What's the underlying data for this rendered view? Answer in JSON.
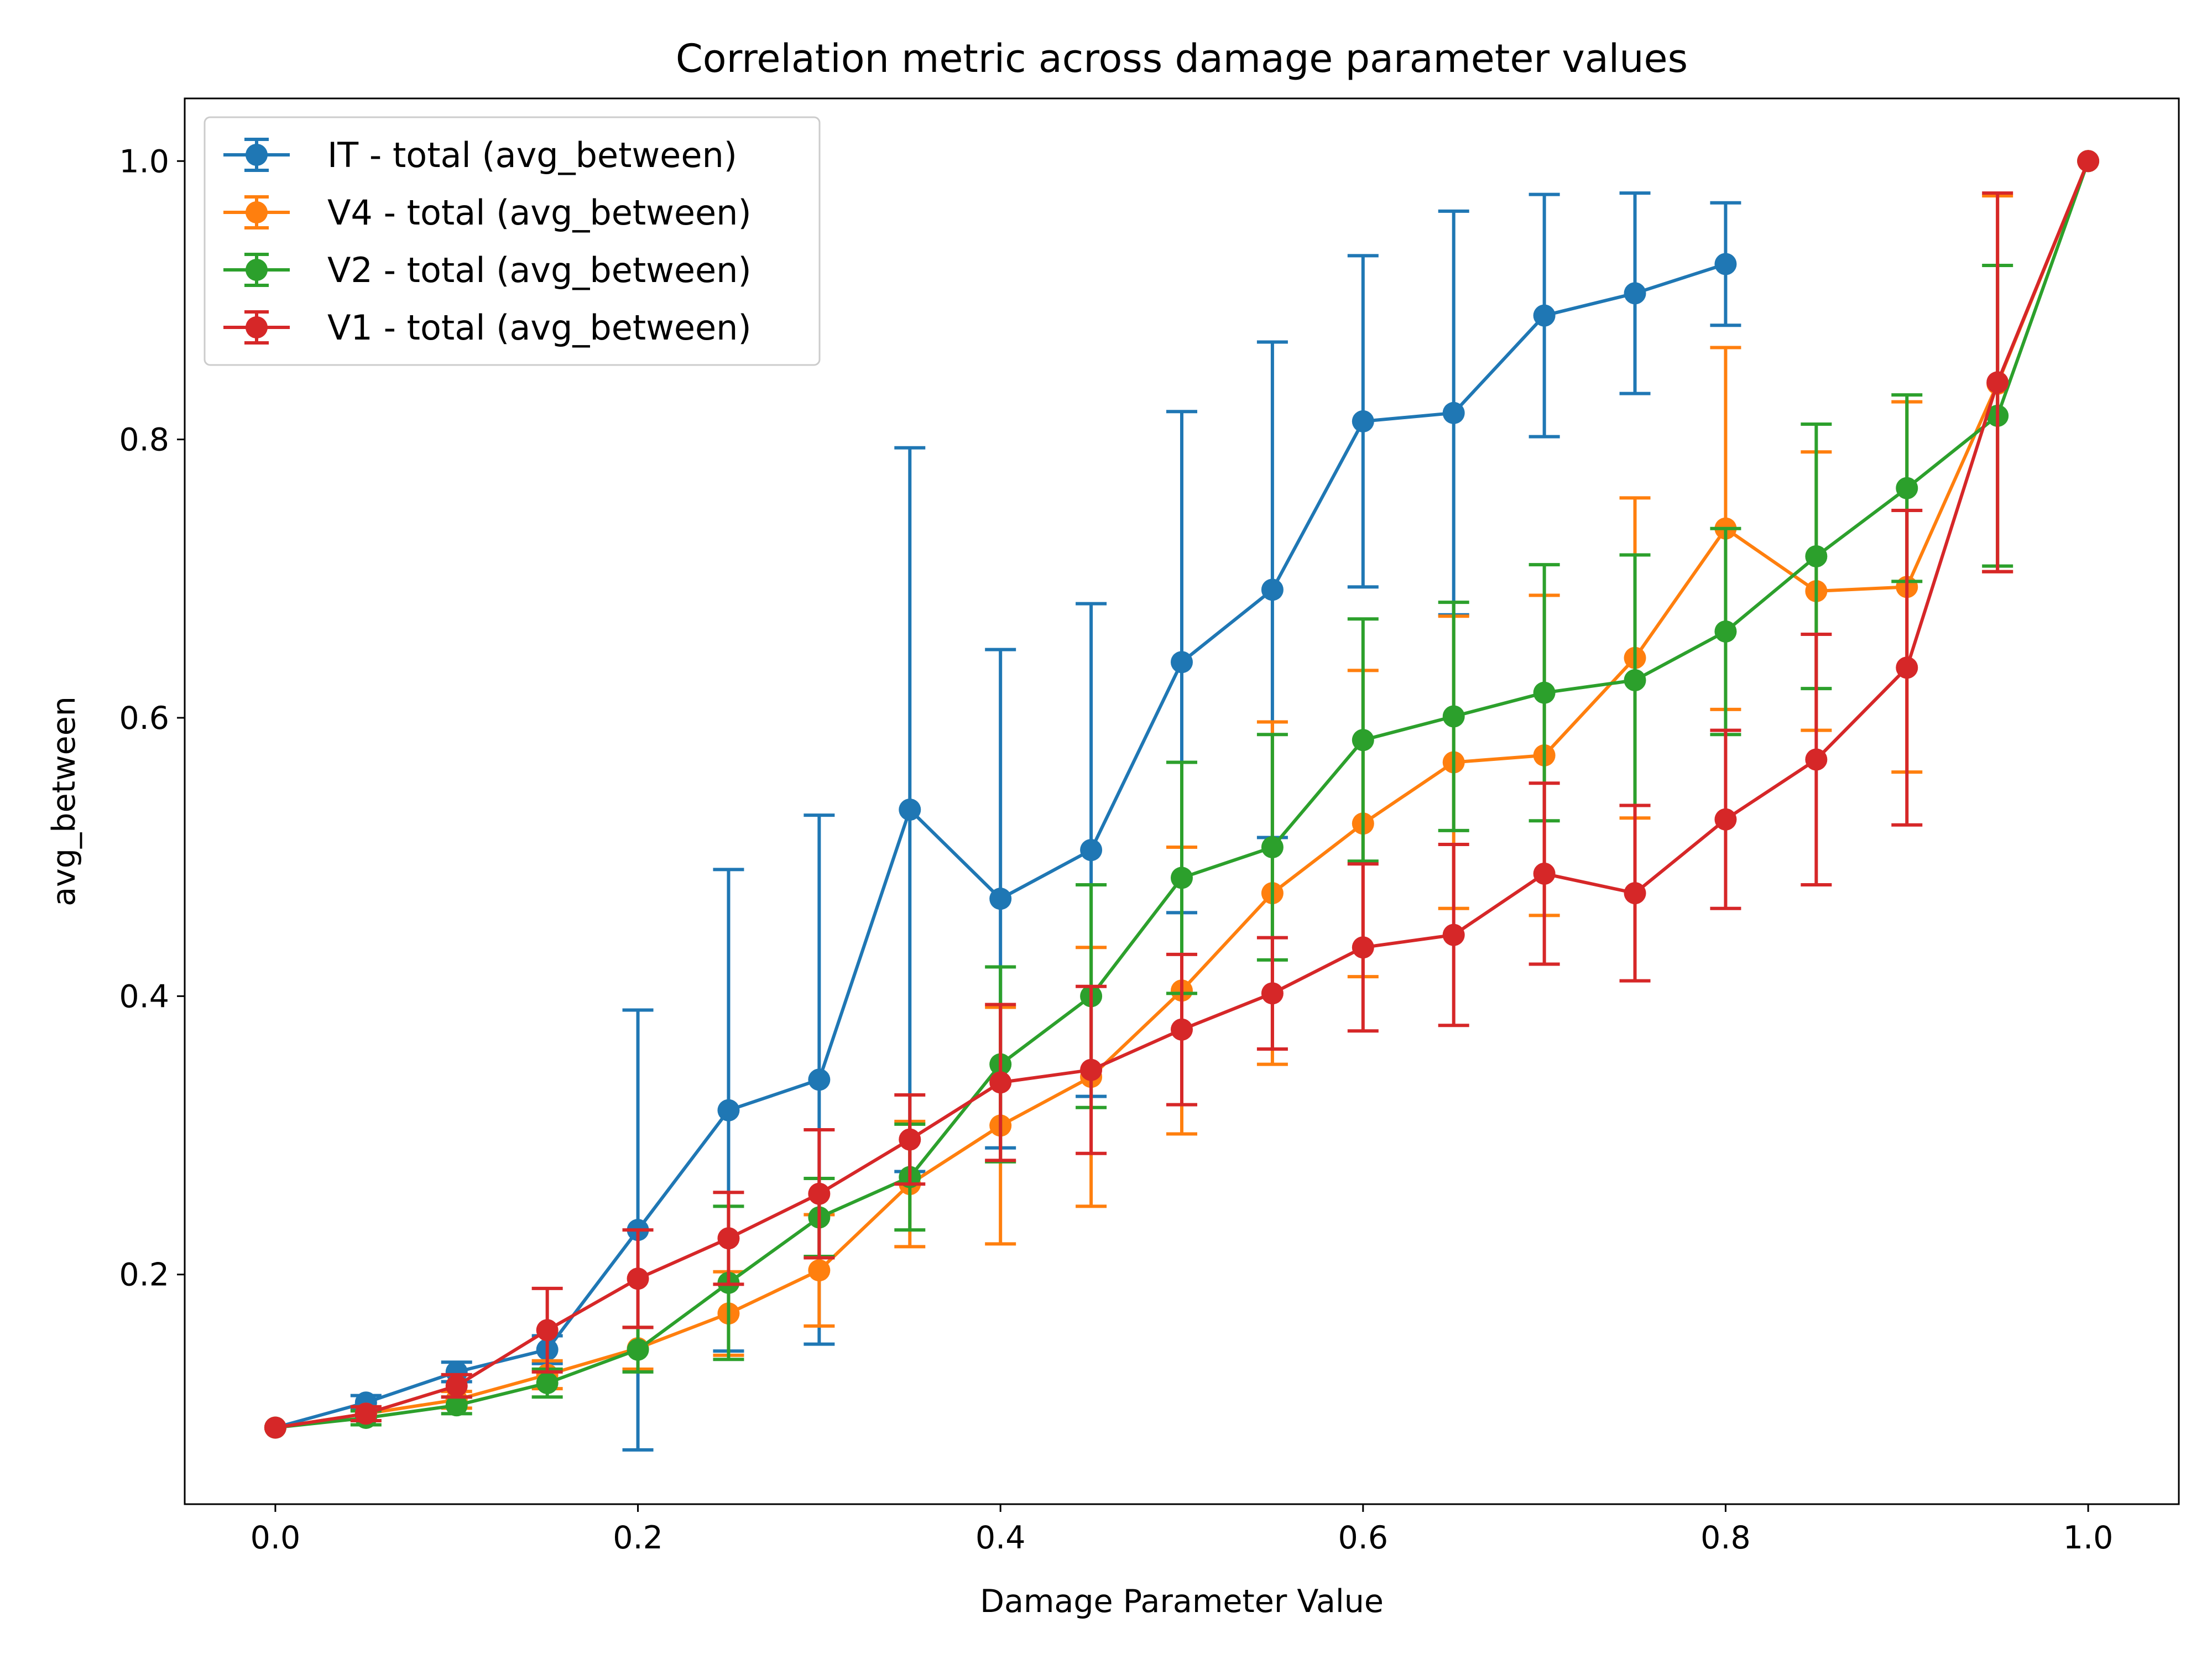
{
  "chart_data": {
    "type": "line",
    "title": "Correlation metric across damage parameter values",
    "xlabel": "Damage Parameter Value",
    "ylabel": "avg_between",
    "xlim": [
      -0.05,
      1.05
    ],
    "ylim": [
      0.035,
      1.045
    ],
    "x_ticks": [
      0.0,
      0.2,
      0.4,
      0.6,
      0.8,
      1.0
    ],
    "x_tick_labels": [
      "0.0",
      "0.2",
      "0.4",
      "0.6",
      "0.8",
      "1.0"
    ],
    "y_ticks": [
      0.2,
      0.4,
      0.6,
      0.8,
      1.0
    ],
    "y_tick_labels": [
      "0.2",
      "0.4",
      "0.6",
      "0.8",
      "1.0"
    ],
    "grid": false,
    "legend": "top-left",
    "series": [
      {
        "name": "IT - total (avg_between)",
        "color": "#1f77b4",
        "x": [
          0.0,
          0.05,
          0.1,
          0.15,
          0.2,
          0.25,
          0.3,
          0.35,
          0.4,
          0.45,
          0.5,
          0.55,
          0.6,
          0.65,
          0.7,
          0.75,
          0.8
        ],
        "y": [
          0.09,
          0.108,
          0.13,
          0.146,
          0.232,
          0.318,
          0.34,
          0.534,
          0.47,
          0.505,
          0.64,
          0.692,
          0.813,
          0.819,
          0.889,
          0.905,
          0.926
        ],
        "err": [
          0.0,
          0.005,
          0.007,
          0.01,
          0.158,
          0.173,
          0.19,
          0.26,
          0.179,
          0.177,
          0.18,
          0.178,
          0.119,
          0.145,
          0.087,
          0.072,
          0.044
        ]
      },
      {
        "name": "V4 - total (avg_between)",
        "color": "#ff7f0e",
        "x": [
          0.0,
          0.05,
          0.1,
          0.15,
          0.2,
          0.25,
          0.3,
          0.35,
          0.4,
          0.45,
          0.5,
          0.55,
          0.6,
          0.65,
          0.7,
          0.75,
          0.8,
          0.85,
          0.9,
          0.95,
          1.0
        ],
        "y": [
          0.09,
          0.1,
          0.11,
          0.128,
          0.147,
          0.172,
          0.203,
          0.265,
          0.307,
          0.342,
          0.404,
          0.474,
          0.524,
          0.568,
          0.573,
          0.643,
          0.736,
          0.691,
          0.694,
          0.84,
          1.0
        ],
        "err": [
          0.0,
          0.005,
          0.006,
          0.01,
          0.015,
          0.03,
          0.04,
          0.045,
          0.085,
          0.093,
          0.103,
          0.123,
          0.11,
          0.105,
          0.115,
          0.115,
          0.13,
          0.1,
          0.133,
          0.135,
          0.0
        ]
      },
      {
        "name": "V2 - total (avg_between)",
        "color": "#2ca02c",
        "x": [
          0.0,
          0.05,
          0.1,
          0.15,
          0.2,
          0.25,
          0.3,
          0.35,
          0.4,
          0.45,
          0.5,
          0.55,
          0.6,
          0.65,
          0.7,
          0.75,
          0.8,
          0.85,
          0.9,
          0.95,
          1.0
        ],
        "y": [
          0.09,
          0.097,
          0.106,
          0.122,
          0.146,
          0.194,
          0.241,
          0.27,
          0.351,
          0.4,
          0.485,
          0.507,
          0.584,
          0.601,
          0.618,
          0.627,
          0.662,
          0.716,
          0.765,
          0.817,
          1.0
        ],
        "err": [
          0.0,
          0.005,
          0.006,
          0.01,
          0.016,
          0.055,
          0.028,
          0.038,
          0.07,
          0.08,
          0.083,
          0.081,
          0.087,
          0.082,
          0.092,
          0.09,
          0.074,
          0.095,
          0.067,
          0.108,
          0.0
        ]
      },
      {
        "name": "V1 - total (avg_between)",
        "color": "#d62728",
        "x": [
          0.0,
          0.05,
          0.1,
          0.15,
          0.2,
          0.25,
          0.3,
          0.35,
          0.4,
          0.45,
          0.5,
          0.55,
          0.6,
          0.65,
          0.7,
          0.75,
          0.8,
          0.85,
          0.9,
          0.95,
          1.0
        ],
        "y": [
          0.09,
          0.1,
          0.12,
          0.16,
          0.197,
          0.226,
          0.258,
          0.297,
          0.338,
          0.347,
          0.376,
          0.402,
          0.435,
          0.444,
          0.488,
          0.474,
          0.527,
          0.57,
          0.636,
          0.841,
          1.0
        ],
        "err": [
          0.0,
          0.005,
          0.008,
          0.03,
          0.035,
          0.033,
          0.046,
          0.032,
          0.056,
          0.06,
          0.054,
          0.04,
          0.06,
          0.065,
          0.065,
          0.063,
          0.064,
          0.09,
          0.113,
          0.136,
          0.0
        ]
      }
    ]
  }
}
